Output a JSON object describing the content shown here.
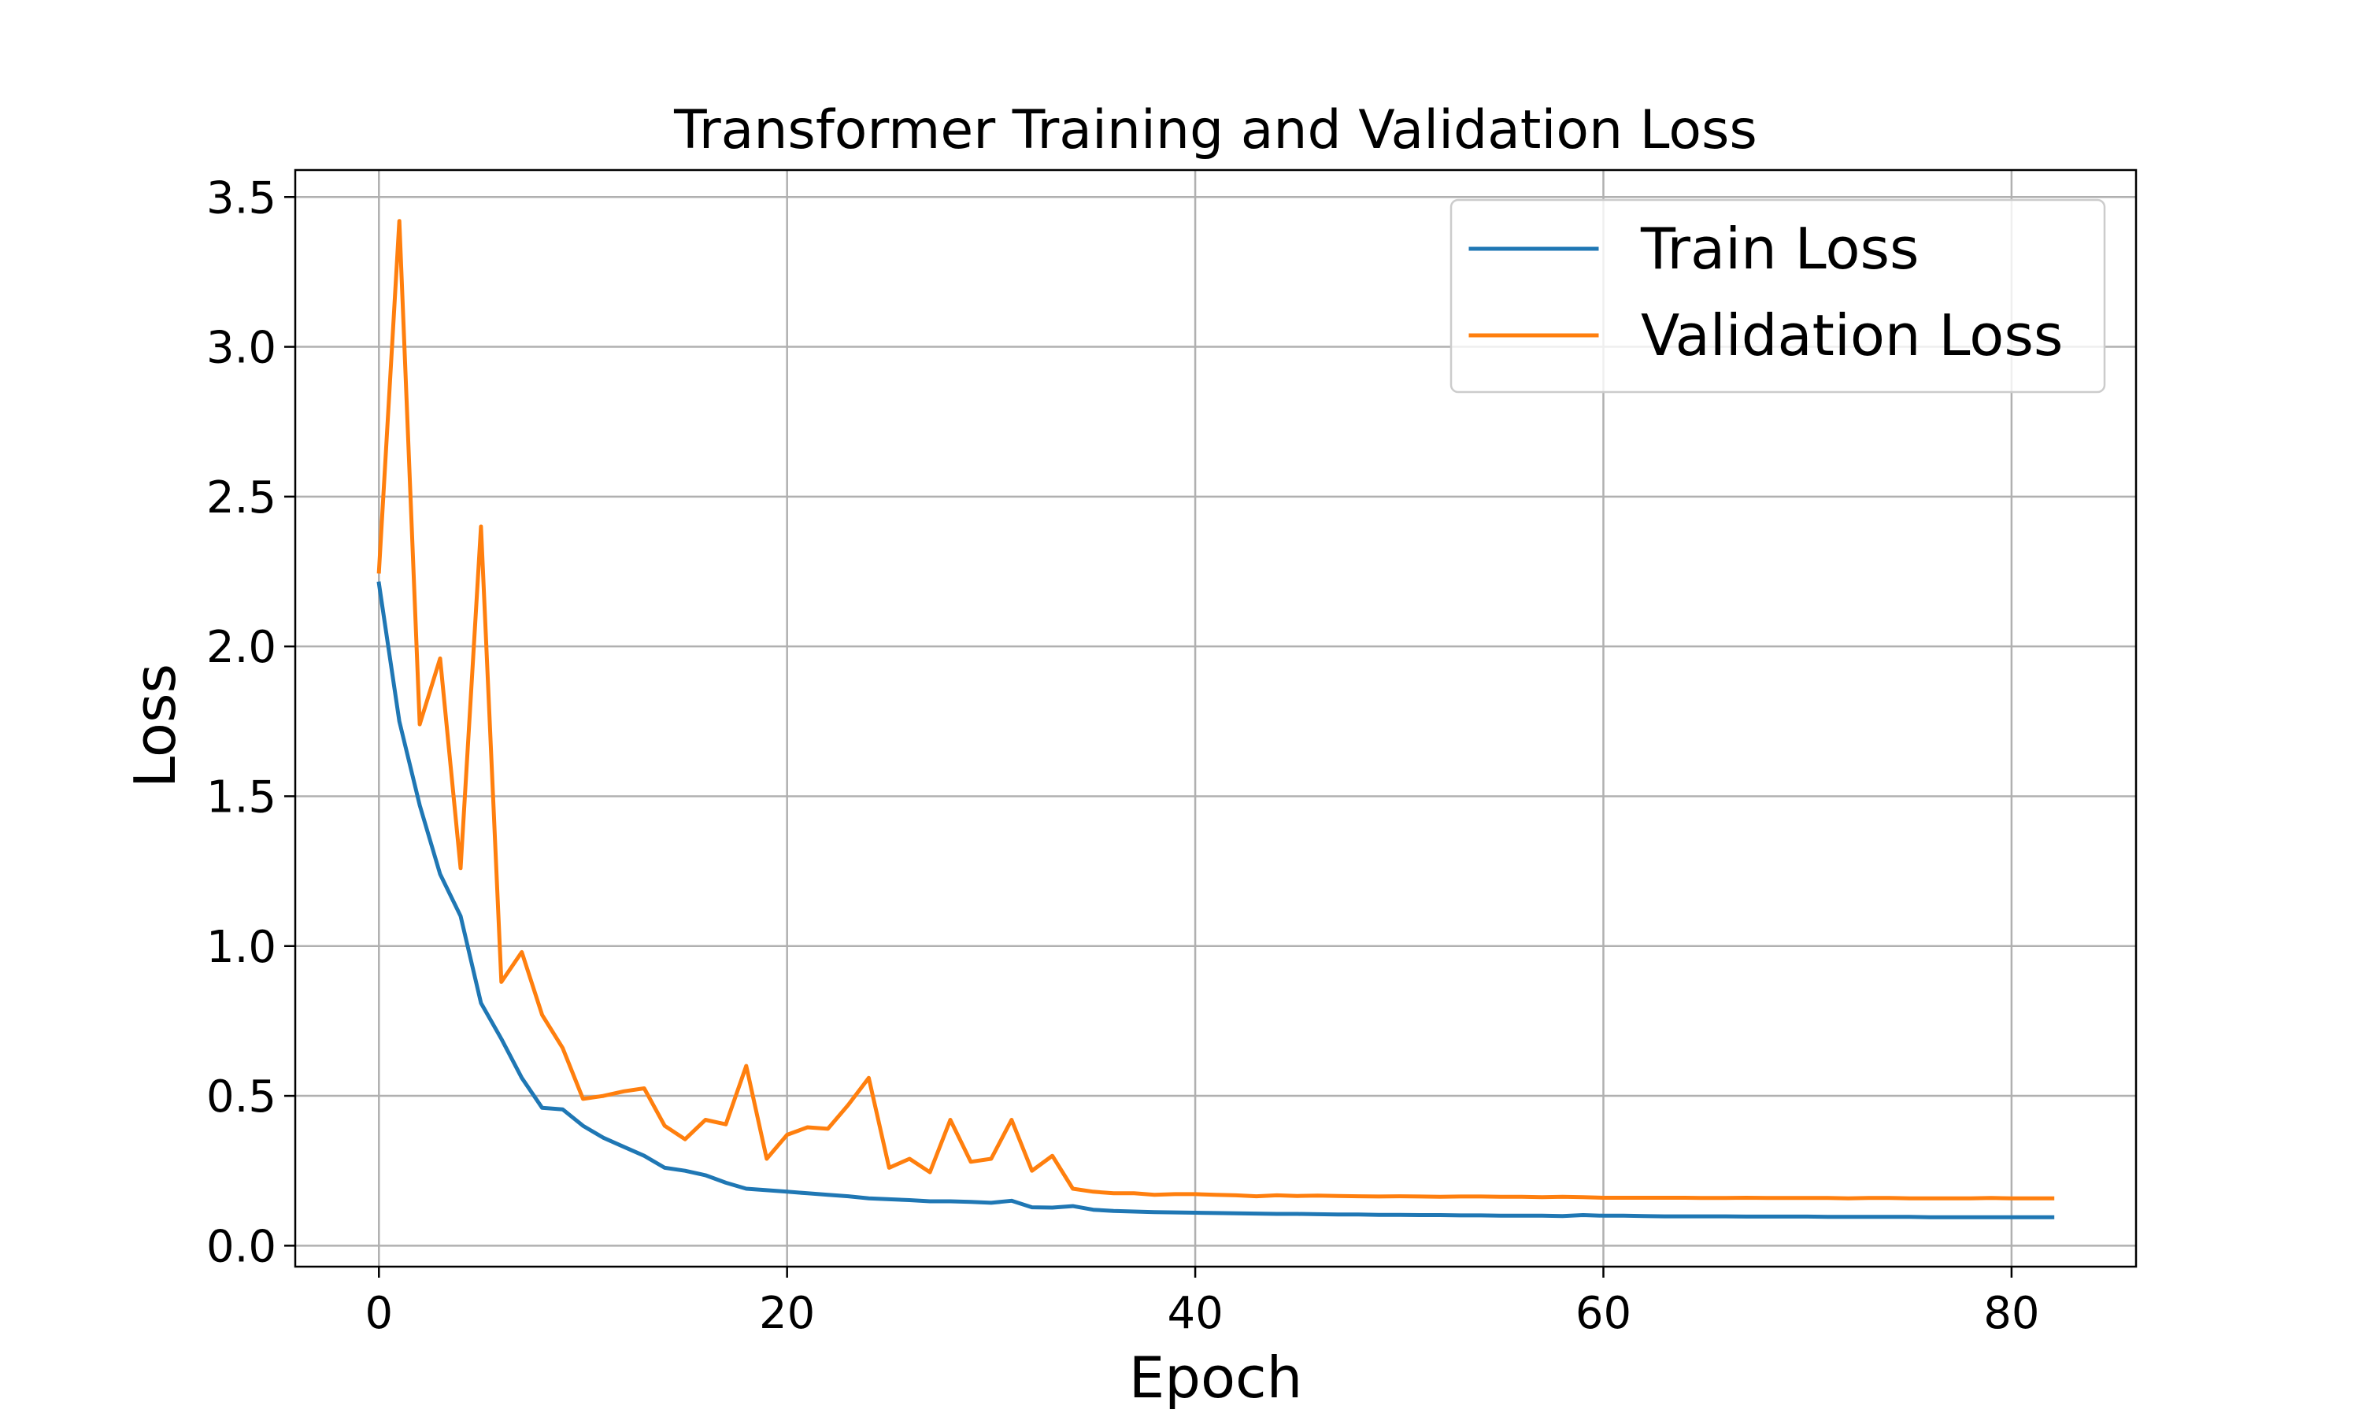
{
  "chart_data": {
    "type": "line",
    "title": "Transformer Training and Validation Loss",
    "xlabel": "Epoch",
    "ylabel": "Loss",
    "xlim": [
      -4.1,
      86.1
    ],
    "ylim": [
      -0.07,
      3.59
    ],
    "xticks": [
      0,
      20,
      40,
      60,
      80
    ],
    "yticks": [
      0.0,
      0.5,
      1.0,
      1.5,
      2.0,
      2.5,
      3.0,
      3.5
    ],
    "xtick_labels": [
      "0",
      "20",
      "40",
      "60",
      "80"
    ],
    "ytick_labels": [
      "0.0",
      "0.5",
      "1.0",
      "1.5",
      "2.0",
      "2.5",
      "3.0",
      "3.5"
    ],
    "grid": true,
    "legend_position": "top-right",
    "series": [
      {
        "name": "Train Loss",
        "color": "#1f77b4",
        "x": [
          0,
          1,
          2,
          3,
          4,
          5,
          6,
          7,
          8,
          9,
          10,
          11,
          12,
          13,
          14,
          15,
          16,
          17,
          18,
          19,
          20,
          21,
          22,
          23,
          24,
          25,
          26,
          27,
          28,
          29,
          30,
          31,
          32,
          33,
          34,
          35,
          36,
          37,
          38,
          39,
          40,
          41,
          42,
          43,
          44,
          45,
          46,
          47,
          48,
          49,
          50,
          51,
          52,
          53,
          54,
          55,
          56,
          57,
          58,
          59,
          60,
          61,
          62,
          63,
          64,
          65,
          66,
          67,
          68,
          69,
          70,
          71,
          72,
          73,
          74,
          75,
          76,
          77,
          78,
          79,
          80,
          81,
          82
        ],
        "values": [
          2.21,
          1.75,
          1.47,
          1.24,
          1.1,
          0.81,
          0.69,
          0.56,
          0.46,
          0.455,
          0.4,
          0.36,
          0.33,
          0.3,
          0.26,
          0.25,
          0.235,
          0.21,
          0.19,
          0.185,
          0.18,
          0.175,
          0.17,
          0.165,
          0.158,
          0.155,
          0.152,
          0.148,
          0.148,
          0.146,
          0.143,
          0.15,
          0.128,
          0.127,
          0.132,
          0.12,
          0.116,
          0.114,
          0.112,
          0.111,
          0.11,
          0.109,
          0.108,
          0.107,
          0.106,
          0.106,
          0.105,
          0.104,
          0.104,
          0.103,
          0.103,
          0.102,
          0.102,
          0.101,
          0.101,
          0.1,
          0.1,
          0.1,
          0.099,
          0.102,
          0.1,
          0.1,
          0.099,
          0.098,
          0.098,
          0.098,
          0.098,
          0.097,
          0.097,
          0.097,
          0.097,
          0.096,
          0.096,
          0.096,
          0.096,
          0.096,
          0.095,
          0.095,
          0.095,
          0.095,
          0.095,
          0.095,
          0.095
        ]
      },
      {
        "name": "Validation Loss",
        "color": "#ff7f0e",
        "x": [
          0,
          1,
          2,
          3,
          4,
          5,
          6,
          7,
          8,
          9,
          10,
          11,
          12,
          13,
          14,
          15,
          16,
          17,
          18,
          19,
          20,
          21,
          22,
          23,
          24,
          25,
          26,
          27,
          28,
          29,
          30,
          31,
          32,
          33,
          34,
          35,
          36,
          37,
          38,
          39,
          40,
          41,
          42,
          43,
          44,
          45,
          46,
          47,
          48,
          49,
          50,
          51,
          52,
          53,
          54,
          55,
          56,
          57,
          58,
          59,
          60,
          61,
          62,
          63,
          64,
          65,
          66,
          67,
          68,
          69,
          70,
          71,
          72,
          73,
          74,
          75,
          76,
          77,
          78,
          79,
          80,
          81,
          82
        ],
        "values": [
          2.25,
          3.42,
          1.74,
          1.96,
          1.26,
          2.4,
          0.88,
          0.98,
          0.77,
          0.66,
          0.49,
          0.5,
          0.515,
          0.525,
          0.4,
          0.355,
          0.42,
          0.405,
          0.6,
          0.29,
          0.37,
          0.395,
          0.39,
          0.47,
          0.56,
          0.26,
          0.29,
          0.245,
          0.42,
          0.28,
          0.29,
          0.42,
          0.25,
          0.3,
          0.19,
          0.18,
          0.175,
          0.175,
          0.17,
          0.172,
          0.172,
          0.17,
          0.168,
          0.165,
          0.168,
          0.166,
          0.167,
          0.166,
          0.165,
          0.164,
          0.165,
          0.164,
          0.163,
          0.164,
          0.164,
          0.163,
          0.163,
          0.162,
          0.163,
          0.162,
          0.16,
          0.16,
          0.16,
          0.16,
          0.16,
          0.159,
          0.159,
          0.16,
          0.159,
          0.159,
          0.159,
          0.159,
          0.158,
          0.159,
          0.159,
          0.158,
          0.158,
          0.158,
          0.158,
          0.159,
          0.158,
          0.158,
          0.158
        ]
      }
    ]
  }
}
